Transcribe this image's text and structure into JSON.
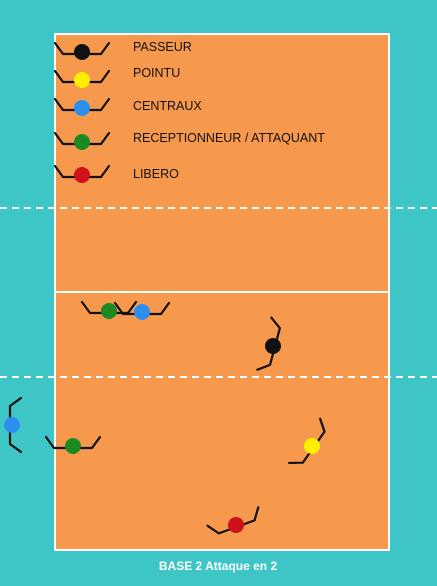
{
  "colors": {
    "background": "#3ec6c6",
    "court": "#f6994d",
    "lines": "#ffffff",
    "arms": "#111111",
    "passeur": "#111111",
    "pointu": "#ffee00",
    "centraux": "#2b8ff0",
    "receptionneur": "#1b8a22",
    "libero": "#d0101a"
  },
  "legend": [
    {
      "role": "passeur",
      "label": "PASSEUR"
    },
    {
      "role": "pointu",
      "label": "POINTU"
    },
    {
      "role": "centraux",
      "label": "CENTRAUX"
    },
    {
      "role": "receptionneur",
      "label": "RECEPTIONNEUR / ATTAQUANT"
    },
    {
      "role": "libero",
      "label": "LIBERO"
    }
  ],
  "caption": "BASE 2 Attaque en 2"
}
